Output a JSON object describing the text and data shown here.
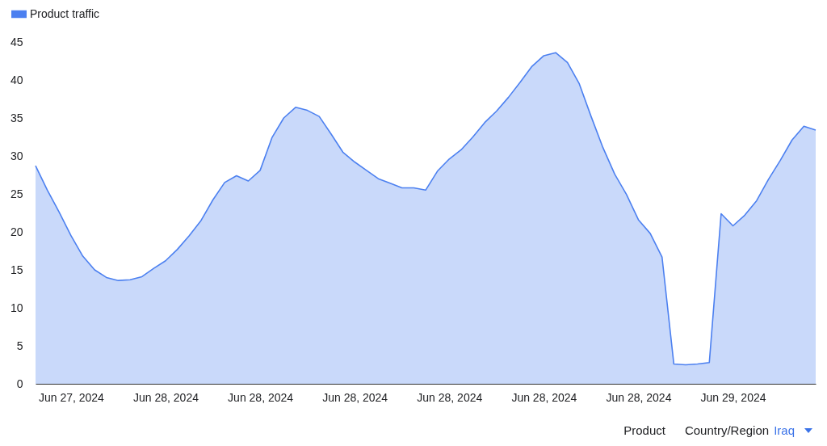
{
  "chart_data": {
    "type": "area",
    "categories": [
      null,
      null,
      null,
      "Jun 27, 2024",
      null,
      null,
      null,
      null,
      null,
      null,
      null,
      "Jun 28, 2024",
      null,
      null,
      null,
      null,
      null,
      null,
      null,
      "Jun 28, 2024",
      null,
      null,
      null,
      null,
      null,
      null,
      null,
      "Jun 28, 2024",
      null,
      null,
      null,
      null,
      null,
      null,
      null,
      "Jun 28, 2024",
      null,
      null,
      null,
      null,
      null,
      null,
      null,
      "Jun 28, 2024",
      null,
      null,
      null,
      null,
      null,
      null,
      null,
      "Jun 28, 2024",
      null,
      null,
      null,
      null,
      null,
      null,
      null,
      "Jun 29, 2024",
      null,
      null,
      null,
      null,
      null,
      null,
      null
    ],
    "series": [
      {
        "name": "Product traffic",
        "color": "#4c80f0",
        "values": [
          28.7,
          25.5,
          22.6,
          19.5,
          16.8,
          15.0,
          14.0,
          13.6,
          13.7,
          14.1,
          15.2,
          16.2,
          17.7,
          19.5,
          21.5,
          24.2,
          26.5,
          27.4,
          26.7,
          28.1,
          32.4,
          35.0,
          36.4,
          36.0,
          35.2,
          32.9,
          30.5,
          29.2,
          28.1,
          27.0,
          26.4,
          25.8,
          25.8,
          25.5,
          28.0,
          29.6,
          30.8,
          32.5,
          34.4,
          35.9,
          37.7,
          39.7,
          41.8,
          43.2,
          43.6,
          42.3,
          39.5,
          35.2,
          31.1,
          27.6,
          24.9,
          21.6,
          19.8,
          16.7,
          2.6,
          2.5,
          2.6,
          2.8,
          22.4,
          20.8,
          22.2,
          24.1,
          26.9,
          29.4,
          32.1,
          33.9,
          33.4
        ]
      }
    ],
    "ylim": [
      0,
      45
    ],
    "yticks": [
      0,
      5,
      10,
      15,
      20,
      25,
      30,
      35,
      40,
      45
    ],
    "legend": "top left",
    "grid": false,
    "annotations": [
      "Product",
      "Country/Region",
      "Iraq"
    ]
  }
}
